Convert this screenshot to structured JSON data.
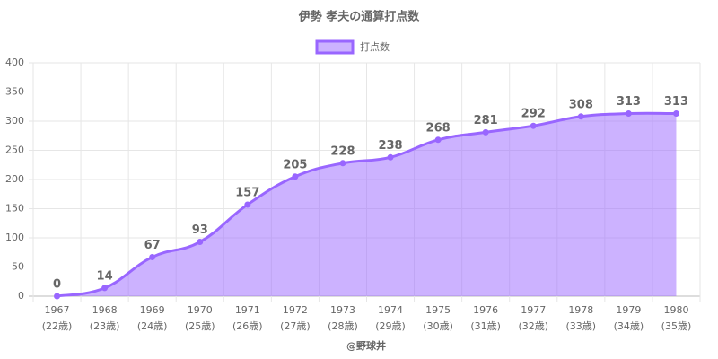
{
  "chart_data": {
    "type": "line",
    "title": "伊勢 孝夫の通算打点数",
    "footer": "@野球丼",
    "categories": [
      "1967",
      "1968",
      "1969",
      "1970",
      "1971",
      "1972",
      "1973",
      "1974",
      "1975",
      "1976",
      "1977",
      "1978",
      "1979",
      "1980"
    ],
    "category_sublabels": [
      "(22歳)",
      "(23歳)",
      "(24歳)",
      "(25歳)",
      "(26歳)",
      "(27歳)",
      "(28歳)",
      "(29歳)",
      "(30歳)",
      "(31歳)",
      "(32歳)",
      "(33歳)",
      "(34歳)",
      "(35歳)"
    ],
    "series": [
      {
        "name": "打点数",
        "color": "#9966ff",
        "fill": true,
        "values": [
          0,
          14,
          67,
          93,
          157,
          205,
          228,
          238,
          268,
          281,
          292,
          308,
          313,
          313
        ]
      }
    ],
    "ylim": [
      0,
      400
    ],
    "yticks": [
      0,
      50,
      100,
      150,
      200,
      250,
      300,
      350,
      400
    ],
    "grid": true,
    "legend": "top"
  }
}
